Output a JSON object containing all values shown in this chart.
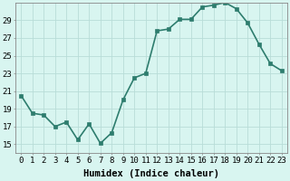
{
  "x": [
    0,
    1,
    2,
    3,
    4,
    5,
    6,
    7,
    8,
    9,
    10,
    11,
    12,
    13,
    14,
    15,
    16,
    17,
    18,
    19,
    20,
    21,
    22,
    23
  ],
  "y": [
    20.5,
    18.5,
    18.3,
    17.0,
    17.5,
    15.5,
    17.3,
    15.1,
    16.3,
    20.0,
    22.5,
    23.0,
    27.8,
    28.0,
    29.1,
    29.1,
    30.5,
    30.7,
    31.0,
    30.3,
    28.7,
    26.3,
    24.1,
    23.3
  ],
  "line_color": "#2e7d6e",
  "marker": "s",
  "marker_size": 2.5,
  "bg_color": "#d8f5f0",
  "grid_color": "#b8ddd8",
  "xlabel": "Humidex (Indice chaleur)",
  "ylim": [
    14,
    31
  ],
  "xlim": [
    -0.5,
    23.5
  ],
  "yticks": [
    15,
    17,
    19,
    21,
    23,
    25,
    27,
    29
  ],
  "xticks": [
    0,
    1,
    2,
    3,
    4,
    5,
    6,
    7,
    8,
    9,
    10,
    11,
    12,
    13,
    14,
    15,
    16,
    17,
    18,
    19,
    20,
    21,
    22,
    23
  ],
  "xtick_labels": [
    "0",
    "1",
    "2",
    "3",
    "4",
    "5",
    "6",
    "7",
    "8",
    "9",
    "10",
    "11",
    "12",
    "13",
    "14",
    "15",
    "16",
    "17",
    "18",
    "19",
    "20",
    "21",
    "22",
    "23"
  ],
  "line_width": 1.2,
  "font_size": 7.5,
  "tick_font_size": 6.5
}
